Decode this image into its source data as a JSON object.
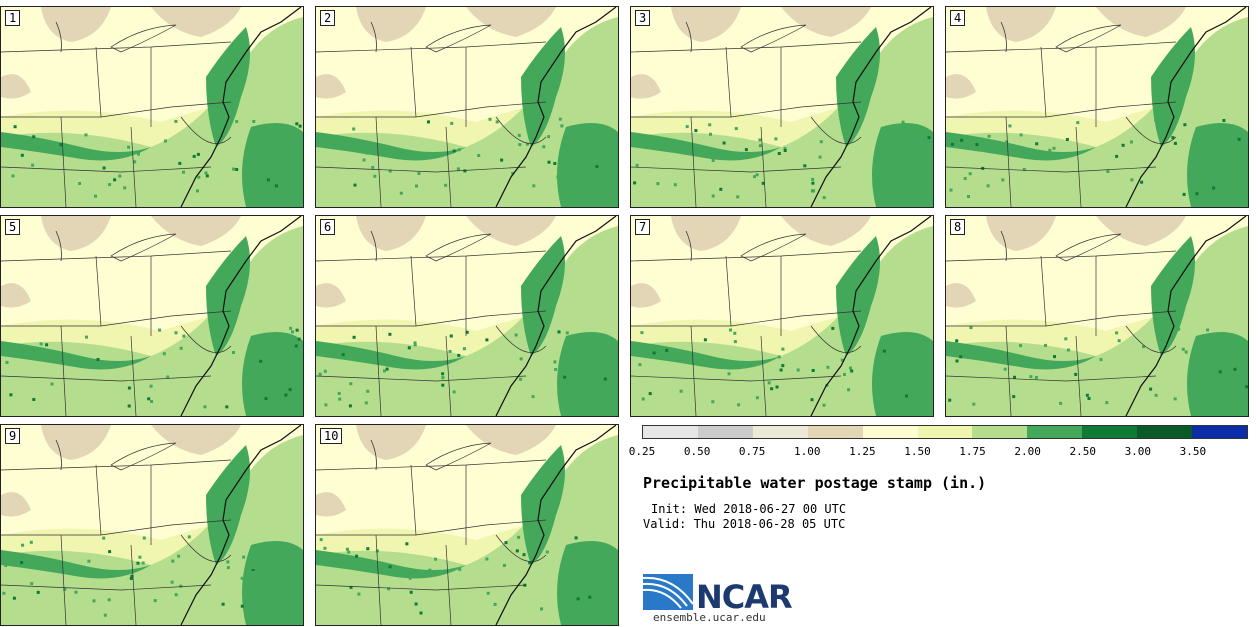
{
  "panels": [
    {
      "label": "1"
    },
    {
      "label": "2"
    },
    {
      "label": "3"
    },
    {
      "label": "4"
    },
    {
      "label": "5"
    },
    {
      "label": "6"
    },
    {
      "label": "7"
    },
    {
      "label": "8"
    },
    {
      "label": "9"
    },
    {
      "label": "10"
    }
  ],
  "legend": {
    "colors": [
      "#e6e6e6",
      "#cccccc",
      "#ebe9d8",
      "#e3d6b6",
      "#fffdd2",
      "#f0f5b0",
      "#b4dd8e",
      "#44a85a",
      "#0e7a36",
      "#0a5a28",
      "#0b2ea8"
    ],
    "ticks": [
      "0.25",
      "0.50",
      "0.75",
      "1.00",
      "1.25",
      "1.50",
      "1.75",
      "2.00",
      "2.50",
      "3.00",
      "3.50"
    ]
  },
  "title": "Precipitable water postage stamp (in.)",
  "init": "Init: Wed 2018-06-27 00 UTC",
  "valid": "Valid: Thu 2018-06-28 05 UTC",
  "logo": {
    "text": "NCAR",
    "url": "ensemble.ucar.edu",
    "primary_color": "#1c3a70",
    "accent_color": "#2a78c8"
  }
}
